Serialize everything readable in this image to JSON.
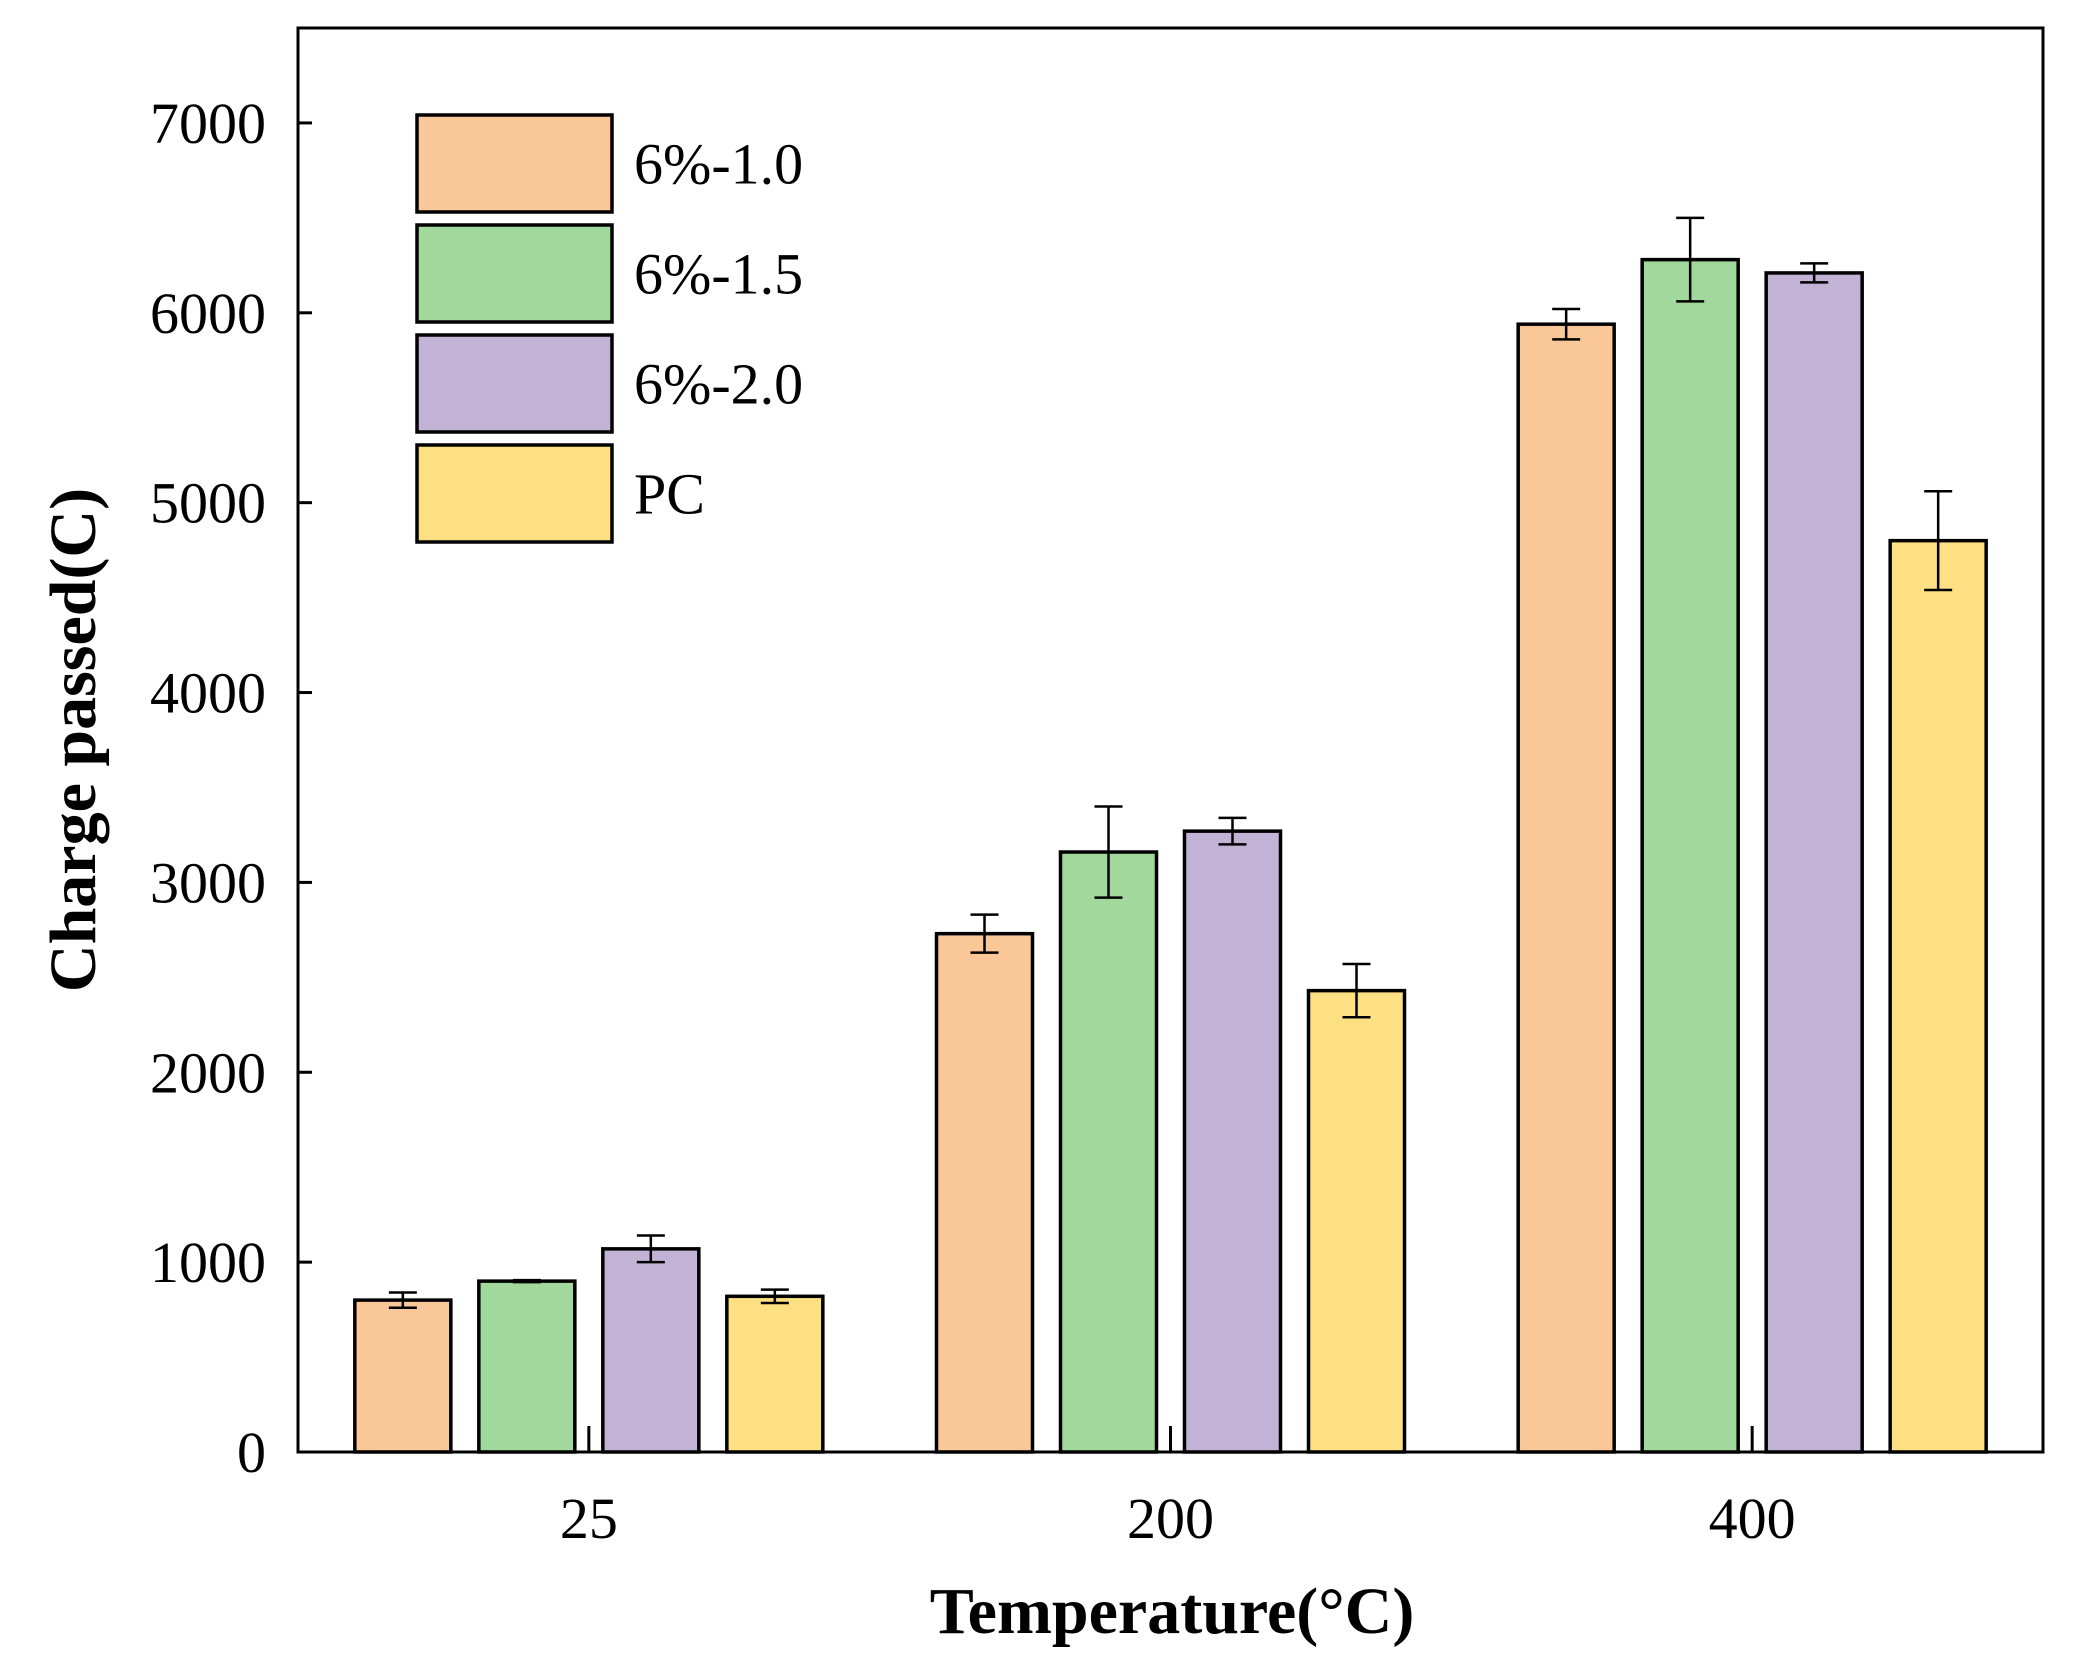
{
  "chart_data": {
    "type": "bar",
    "title": "",
    "xlabel": "Temperature(°C)",
    "ylabel": "Charge passed(C)",
    "ylim": [
      0,
      7500
    ],
    "yticks": [
      0,
      1000,
      2000,
      3000,
      4000,
      5000,
      6000,
      7000
    ],
    "categories": [
      "25",
      "200",
      "400"
    ],
    "legend_position": "top-left",
    "series": [
      {
        "name": "6%-1.0",
        "color": "#FAC898",
        "values": [
          800,
          2730,
          5940
        ],
        "errors": [
          40,
          100,
          80
        ]
      },
      {
        "name": "6%-1.5",
        "color": "#A0D99B",
        "values": [
          900,
          3160,
          6280
        ],
        "errors": [
          5,
          240,
          220
        ]
      },
      {
        "name": "6%-2.0",
        "color": "#C2B2D6",
        "values": [
          1070,
          3270,
          6210
        ],
        "errors": [
          70,
          70,
          50
        ]
      },
      {
        "name": "PC",
        "color": "#FDE082",
        "values": [
          820,
          2430,
          4800
        ],
        "errors": [
          35,
          140,
          260
        ]
      }
    ]
  }
}
